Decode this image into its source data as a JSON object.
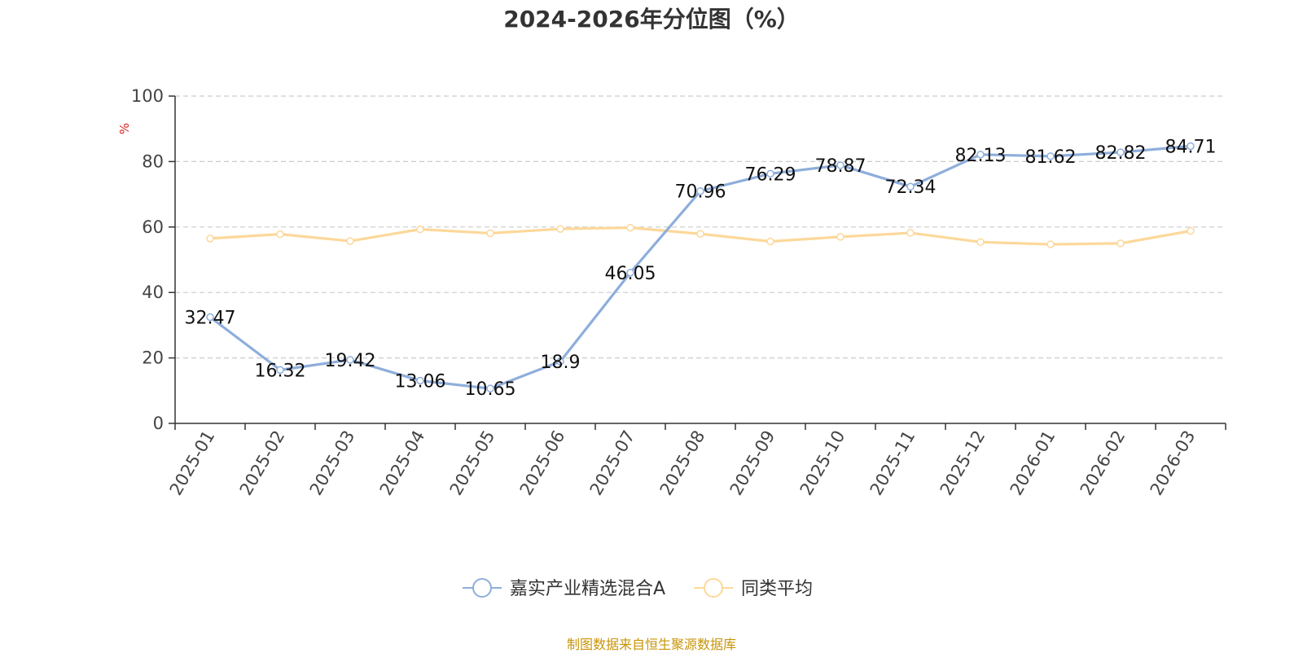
{
  "chart_data": {
    "type": "line",
    "title": "2024-2026年分位图（%）",
    "ylabel": "%",
    "ylim": [
      0,
      100
    ],
    "yticks": [
      0,
      20,
      40,
      60,
      80,
      100
    ],
    "grid": true,
    "legend_position": "bottom",
    "categories": [
      "2025-01",
      "2025-02",
      "2025-03",
      "2025-04",
      "2025-05",
      "2025-06",
      "2025-07",
      "2025-08",
      "2025-09",
      "2025-10",
      "2025-11",
      "2025-12",
      "2026-01",
      "2026-02",
      "2026-03"
    ],
    "series": [
      {
        "name": "嘉实产业精选混合A",
        "color": "#8eaedb",
        "values": [
          32.47,
          16.32,
          19.42,
          13.06,
          10.65,
          18.9,
          46.05,
          70.96,
          76.29,
          78.87,
          72.34,
          82.13,
          81.62,
          82.82,
          84.71
        ],
        "labels": [
          "32.47",
          "16.32",
          "19.42",
          "13.06",
          "10.65",
          "18.9",
          "46.05",
          "70.96",
          "76.29",
          "78.87",
          "72.34",
          "82.13",
          "81.62",
          "82.82",
          "84.71"
        ]
      },
      {
        "name": "同类平均",
        "color": "#fcd89a",
        "values": [
          56.5,
          57.8,
          55.7,
          59.3,
          58.1,
          59.4,
          59.8,
          57.9,
          55.6,
          57.0,
          58.2,
          55.4,
          54.7,
          55.0,
          58.8
        ]
      }
    ]
  },
  "footer": {
    "text": "制图数据来自恒生聚源数据库",
    "color": "#c8940a"
  },
  "ylabel_color": "#e02020"
}
